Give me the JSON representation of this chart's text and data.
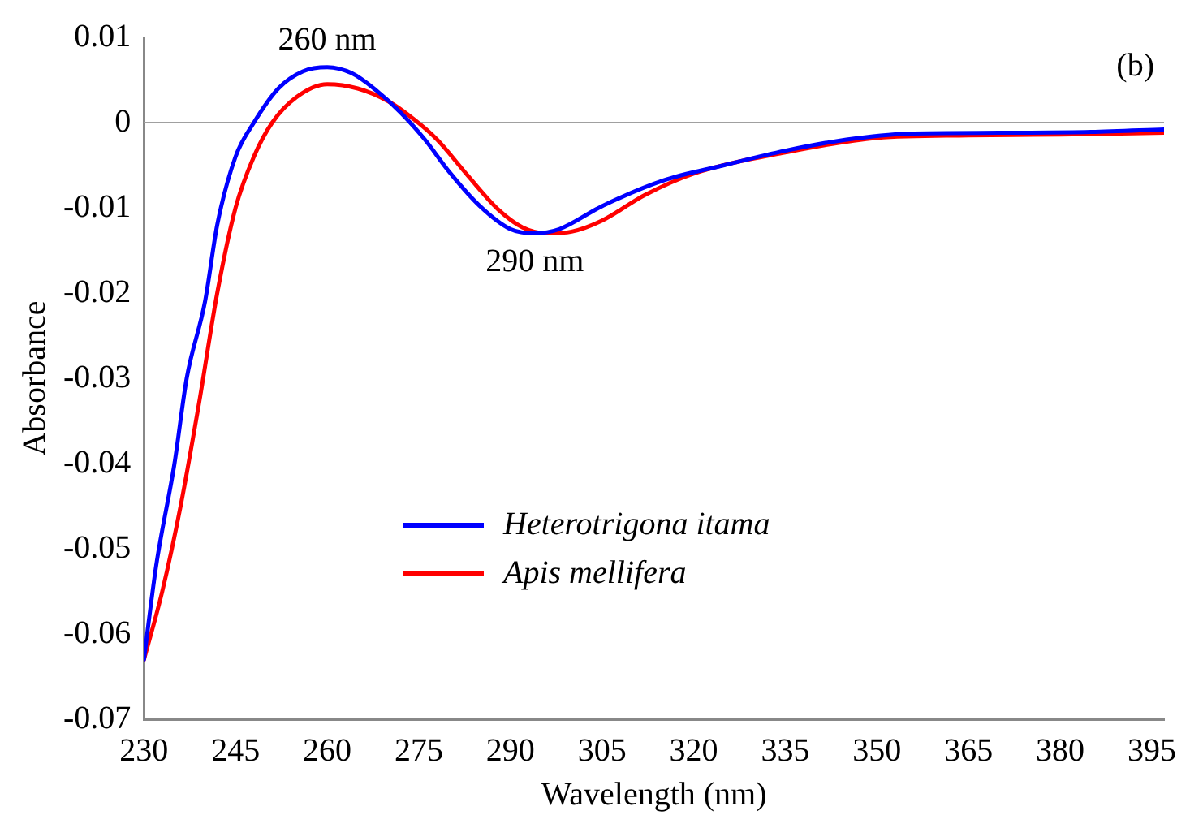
{
  "chart_data": {
    "type": "line",
    "xlabel": "Wavelength (nm)",
    "ylabel": "Absorbance",
    "xlim": [
      230,
      397
    ],
    "xticks": [
      230,
      245,
      260,
      275,
      290,
      305,
      320,
      335,
      350,
      365,
      380,
      395
    ],
    "ylim": [
      -0.07,
      0.01
    ],
    "yticks": [
      -0.07,
      -0.06,
      -0.05,
      -0.04,
      -0.03,
      -0.02,
      -0.01,
      0,
      0.01
    ],
    "grid": false,
    "legend": "bottom",
    "marker": "none",
    "line_style": "solid",
    "ref_lines": [
      {
        "axis": "y",
        "value": 0,
        "color": "#a0a0a0"
      }
    ],
    "annotations": [
      {
        "text": "260 nm",
        "x": 260,
        "y": 0.0065
      },
      {
        "text": "290 nm",
        "x": 294,
        "y": -0.013
      },
      "(b)"
    ],
    "series": [
      {
        "name": "Heterotrigona itama",
        "color": "#0000ff",
        "x": [
          230,
          232,
          235,
          237,
          240,
          242,
          245,
          248,
          252,
          256,
          260,
          264,
          268,
          272,
          276,
          280,
          285,
          290,
          294,
          298,
          305,
          315,
          325,
          335,
          345,
          355,
          370,
          385,
          397
        ],
        "values": [
          -0.063,
          -0.052,
          -0.04,
          -0.03,
          -0.021,
          -0.012,
          -0.004,
          0,
          0.004,
          0.006,
          0.0065,
          0.0058,
          0.0038,
          0.0012,
          -0.002,
          -0.0058,
          -0.0098,
          -0.0125,
          -0.013,
          -0.0125,
          -0.0098,
          -0.0068,
          -0.005,
          -0.0033,
          -0.002,
          -0.0013,
          -0.0012,
          -0.0011,
          -0.0008
        ]
      },
      {
        "name": "Apis mellifera",
        "color": "#ff0000",
        "x": [
          230,
          233,
          236,
          239,
          242,
          245,
          248,
          251,
          255,
          260,
          265,
          270,
          274,
          278,
          283,
          288,
          292,
          296,
          300,
          305,
          312,
          320,
          335,
          350,
          365,
          380,
          397
        ],
        "values": [
          -0.063,
          -0.055,
          -0.045,
          -0.033,
          -0.02,
          -0.01,
          -0.004,
          0,
          0.003,
          0.0045,
          0.004,
          0.0025,
          0.0005,
          -0.002,
          -0.0062,
          -0.0102,
          -0.0123,
          -0.013,
          -0.0128,
          -0.0115,
          -0.0085,
          -0.006,
          -0.0035,
          -0.0018,
          -0.0015,
          -0.0014,
          -0.0012
        ]
      }
    ]
  }
}
